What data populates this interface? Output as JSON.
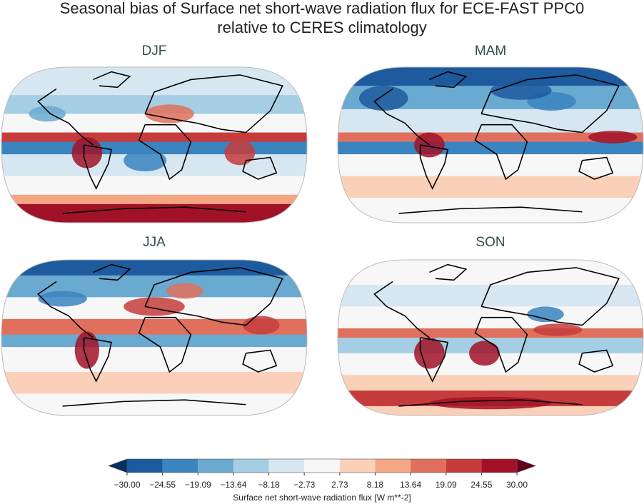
{
  "title": [
    "Seasonal bias of Surface net short-wave radiation flux for ECE-FAST PPC0",
    "relative to CERES climatology"
  ],
  "panels": [
    "DJF",
    "MAM",
    "JJA",
    "SON"
  ],
  "colorbar": {
    "label": "Surface net short-wave radiation flux [W m**-2]",
    "lim": [
      -30,
      30
    ],
    "ticks": [
      {
        "value": -30,
        "label": "−30.00"
      },
      {
        "value": -24.55,
        "label": "−24.55"
      },
      {
        "value": -19.09,
        "label": "−19.09"
      },
      {
        "value": -13.64,
        "label": "−13.64"
      },
      {
        "value": -8.18,
        "label": "−8.18"
      },
      {
        "value": -2.73,
        "label": "−2.73"
      },
      {
        "value": 2.73,
        "label": "2.73"
      },
      {
        "value": 8.18,
        "label": "8.18"
      },
      {
        "value": 13.64,
        "label": "13.64"
      },
      {
        "value": 19.09,
        "label": "19.09"
      },
      {
        "value": 24.55,
        "label": "24.55"
      },
      {
        "value": 30,
        "label": "30.00"
      }
    ],
    "colors": [
      "#1d5a9e",
      "#3a84bf",
      "#6aa9d0",
      "#a5cde3",
      "#d6e7f1",
      "#f7f7f7",
      "#fbd0b9",
      "#f4a582",
      "#e0705d",
      "#c63c3c",
      "#a11228"
    ],
    "extend_colors": [
      "#053061",
      "#67001f"
    ]
  }
}
